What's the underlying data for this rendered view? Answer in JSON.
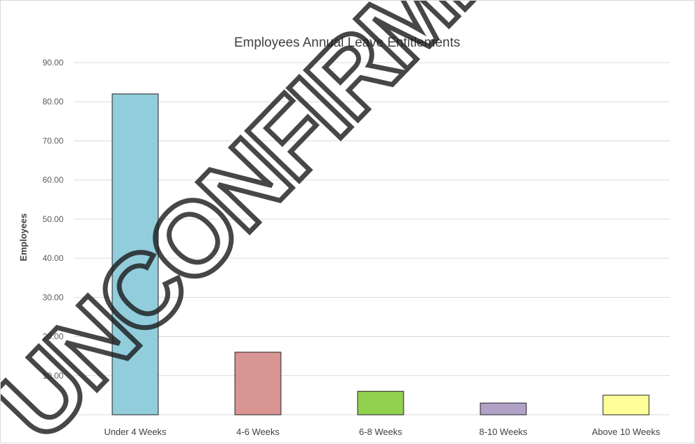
{
  "chart_data": {
    "type": "bar",
    "title": "Employees Annual Leave Entitlements",
    "xlabel": "",
    "ylabel": "Employees",
    "categories": [
      "Under 4 Weeks",
      "4-6 Weeks",
      "6-8 Weeks",
      "8-10 Weeks",
      "Above 10 Weeks"
    ],
    "values": [
      82,
      16,
      6,
      3,
      5
    ],
    "colors": [
      "#92cddc",
      "#d99594",
      "#92d050",
      "#b2a1c7",
      "#ffff99"
    ],
    "ylim": [
      0,
      90
    ],
    "yticks": [
      "90.00",
      "80.00",
      "70.00",
      "60.00",
      "50.00",
      "40.00",
      "30.00",
      "20.00",
      "10.00"
    ],
    "grid": true,
    "legend": "none"
  },
  "watermark": "UNCONFIRMED"
}
